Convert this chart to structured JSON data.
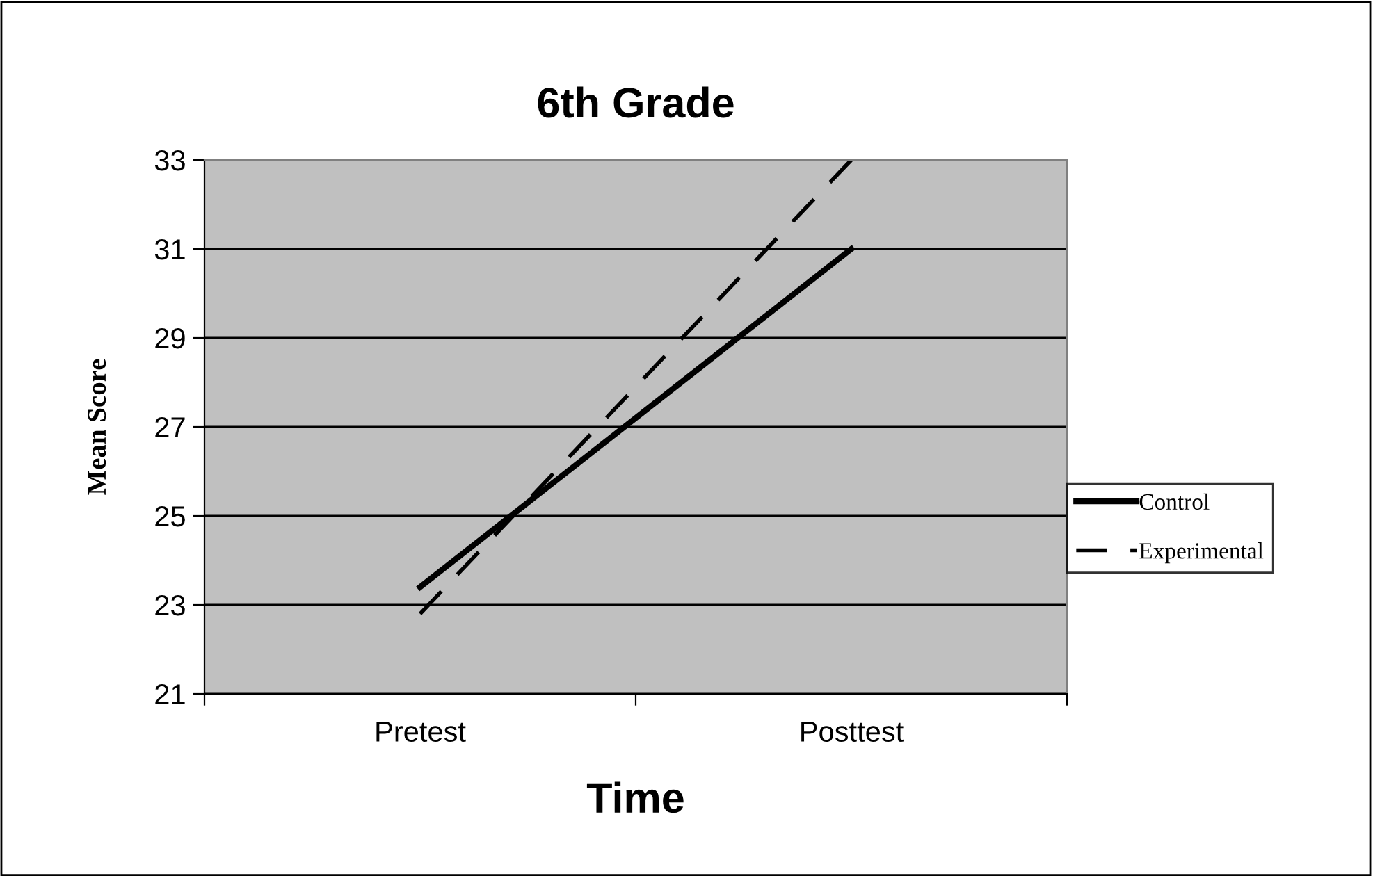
{
  "chart_data": {
    "type": "line",
    "title": "6th Grade",
    "xlabel": "Time",
    "ylabel": "Mean Score",
    "categories": [
      "Pretest",
      "Posttest"
    ],
    "series": [
      {
        "name": "Control",
        "color": "#000000",
        "values": [
          23.4,
          31.0
        ],
        "line_style": "solid"
      },
      {
        "name": "Experimental",
        "color": "#000000",
        "values": [
          22.8,
          33.0
        ],
        "line_style": "dashed"
      }
    ],
    "ylim": [
      21,
      33
    ],
    "yticks": [
      21,
      23,
      25,
      27,
      29,
      31,
      33
    ],
    "grid": "y",
    "legend": "right",
    "marker": "none"
  }
}
